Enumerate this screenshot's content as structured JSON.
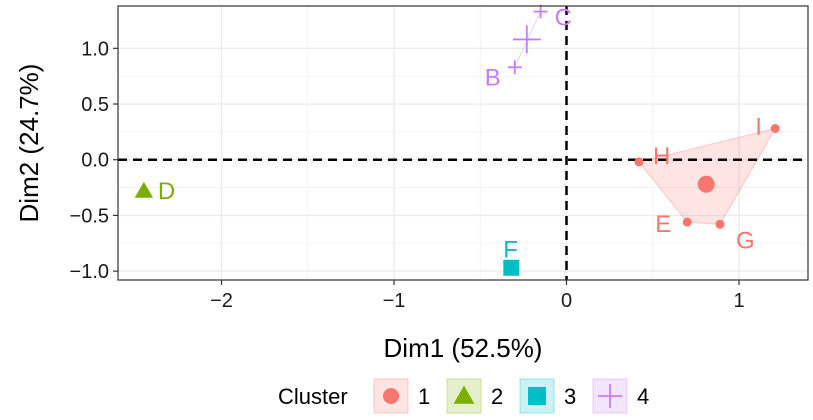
{
  "chart_data": {
    "type": "scatter",
    "xlabel": "Dim1 (52.5%)",
    "ylabel": "Dim2 (24.7%)",
    "xlim": [
      -2.6,
      1.4
    ],
    "ylim": [
      -1.08,
      1.38
    ],
    "x_ticks": [
      -2,
      -1,
      0,
      1
    ],
    "x_tick_labels": [
      "−2",
      "−1",
      "0",
      "1"
    ],
    "y_ticks": [
      -1.0,
      -0.5,
      0.0,
      0.5,
      1.0
    ],
    "y_tick_labels": [
      "−1.0",
      "−0.5",
      "0.0",
      "0.5",
      "1.0"
    ],
    "grid": true,
    "reference_lines": {
      "x": 0,
      "y": 0,
      "style": "dashed"
    },
    "legend": {
      "title": "Cluster",
      "position": "bottom"
    },
    "clusters": [
      {
        "name": "1",
        "color": "#F8766D",
        "shape": "circle",
        "points": [
          {
            "label": "E",
            "x": 0.7,
            "y": -0.56
          },
          {
            "label": "G",
            "x": 0.89,
            "y": -0.58
          },
          {
            "label": "H",
            "x": 0.42,
            "y": -0.02
          },
          {
            "label": "I",
            "x": 1.21,
            "y": 0.28
          }
        ],
        "center": {
          "x": 0.81,
          "y": -0.22
        }
      },
      {
        "name": "2",
        "color": "#7CAE00",
        "shape": "triangle",
        "points": [
          {
            "label": "D",
            "x": -2.45,
            "y": -0.28
          }
        ],
        "center": {
          "x": -2.45,
          "y": -0.28
        }
      },
      {
        "name": "3",
        "color": "#00BFC4",
        "shape": "square",
        "points": [
          {
            "label": "F",
            "x": -0.32,
            "y": -0.97
          }
        ],
        "center": {
          "x": -0.32,
          "y": -0.97
        }
      },
      {
        "name": "4",
        "color": "#C77CFF",
        "shape": "cross",
        "points": [
          {
            "label": "B",
            "x": -0.3,
            "y": 0.83
          },
          {
            "label": "C",
            "x": -0.15,
            "y": 1.33
          }
        ],
        "center": {
          "x": -0.23,
          "y": 1.08
        }
      }
    ]
  }
}
